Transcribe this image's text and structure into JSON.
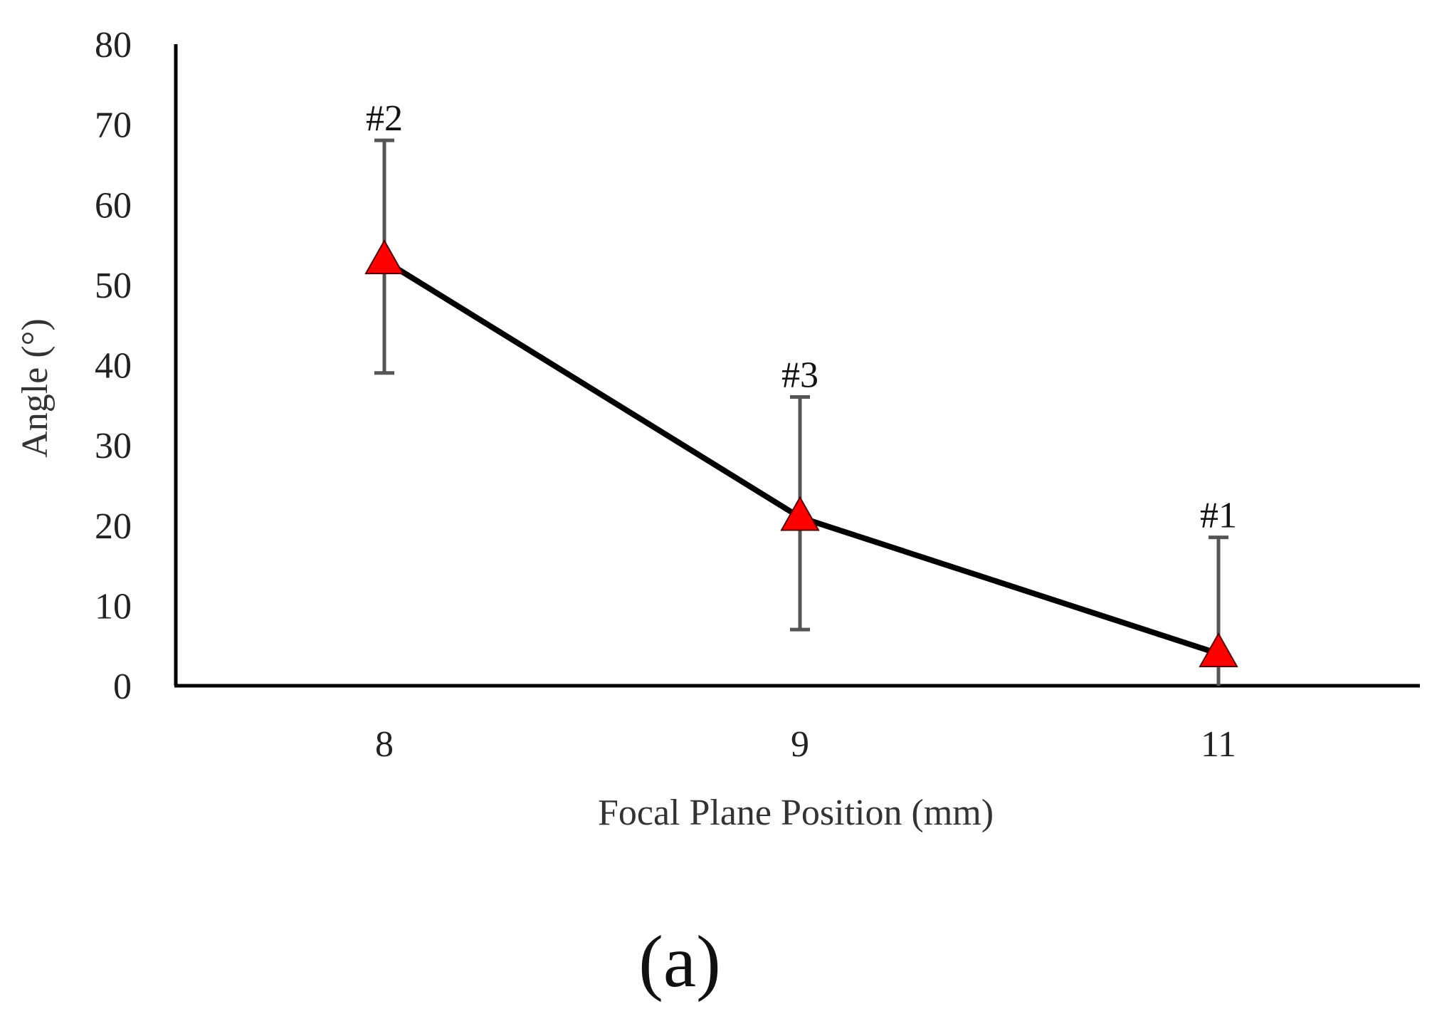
{
  "chart_data": {
    "type": "line",
    "title": "",
    "xlabel": "Focal Plane Position  (mm)",
    "ylabel": "Angle  (°)",
    "categories": [
      "8",
      "9",
      "11"
    ],
    "ylim": [
      0,
      80
    ],
    "yticks": [
      0,
      10,
      20,
      30,
      40,
      50,
      60,
      70,
      80
    ],
    "grid": false,
    "legend": "none",
    "series": [
      {
        "values": [
          53,
          21,
          4
        ],
        "error_low": [
          39,
          7,
          0
        ],
        "error_high": [
          68,
          36,
          18.5
        ],
        "point_labels": [
          "#2",
          "#3",
          "#1"
        ],
        "marker": "triangle",
        "marker_color": "#ff0000",
        "line_color": "#000000",
        "errorbar_color": "#555555"
      }
    ]
  },
  "panel_label": "(a)"
}
